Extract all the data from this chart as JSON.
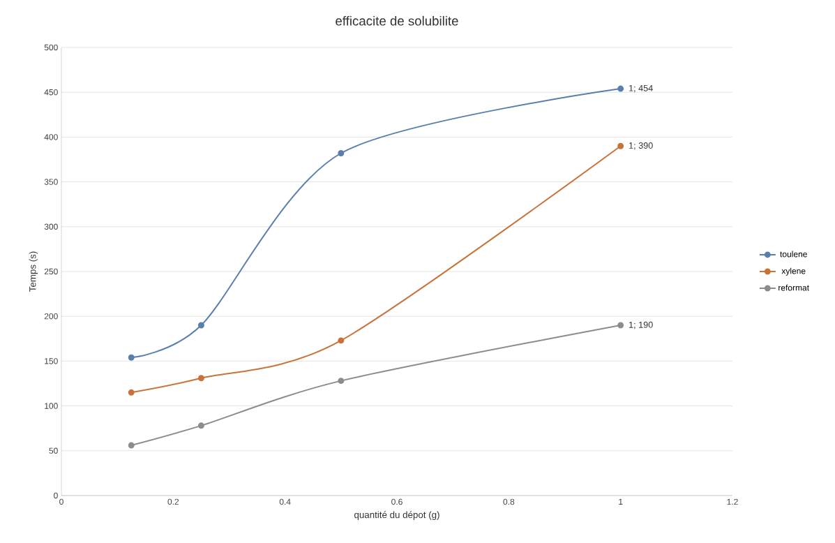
{
  "chart_data": {
    "type": "line",
    "title": "efficacite de solubilite",
    "xlabel": "quantité du dépot (g)",
    "ylabel": "Temps (s)",
    "x": [
      0.125,
      0.25,
      0.5,
      1
    ],
    "series": [
      {
        "name": "toulene",
        "color": "#5b7fad",
        "values": [
          154,
          190,
          382,
          454
        ],
        "value_labels": [
          null,
          null,
          null,
          "1; 454"
        ]
      },
      {
        "name": "xylene",
        "color": "#c8733a",
        "values": [
          115,
          131,
          173,
          390
        ],
        "value_labels": [
          null,
          null,
          null,
          "1; 390"
        ]
      },
      {
        "name": "reformat",
        "color": "#8c8c8c",
        "values": [
          56,
          78,
          128,
          190
        ],
        "value_labels": [
          null,
          null,
          null,
          "1; 190"
        ]
      }
    ],
    "xlim": [
      0,
      1.2
    ],
    "xticks": [
      0,
      0.2,
      0.4,
      0.6,
      0.8,
      1,
      1.2
    ],
    "ylim": [
      0,
      500
    ],
    "yticks": [
      0,
      50,
      100,
      150,
      200,
      250,
      300,
      350,
      400,
      450,
      500
    ],
    "grid": "y",
    "legend": "right",
    "marker": "circle",
    "line_style": "solid"
  }
}
